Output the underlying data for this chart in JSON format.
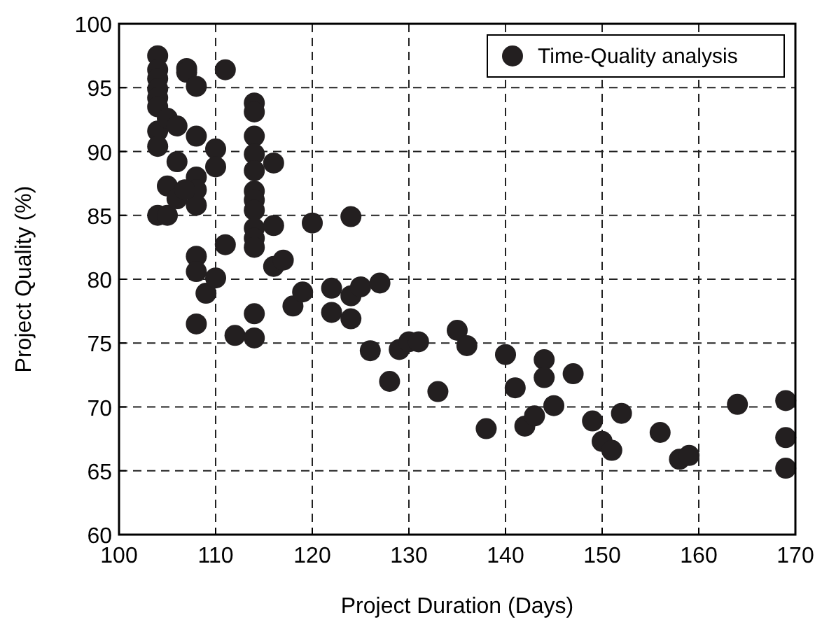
{
  "chart_data": {
    "type": "scatter",
    "xlabel": "Project Duration (Days)",
    "ylabel": "Project Quality (%)",
    "xlim": [
      100,
      170
    ],
    "xticks": [
      100,
      110,
      120,
      130,
      140,
      150,
      160,
      170
    ],
    "ylim": [
      60,
      100
    ],
    "yticks": [
      60,
      65,
      70,
      75,
      80,
      85,
      90,
      95,
      100
    ],
    "grid": true,
    "legend": "top right",
    "marker": "circle",
    "series": [
      {
        "name": "Time-Quality analysis",
        "color": "#231f20",
        "x": [
          104,
          104,
          104,
          104,
          104,
          104,
          104,
          104,
          104,
          105,
          105,
          105,
          106,
          106,
          106,
          107,
          107,
          108,
          108,
          108,
          108,
          108,
          108,
          108,
          108,
          106.8,
          109,
          110,
          110,
          110,
          111,
          111,
          112,
          114,
          114,
          114,
          114,
          114,
          114,
          114,
          114,
          114,
          114,
          114,
          114,
          114,
          116,
          116,
          116,
          117,
          118,
          119,
          120,
          122,
          122,
          124,
          124,
          124,
          125,
          126,
          127,
          129,
          130,
          131,
          128,
          133,
          135,
          136,
          138,
          140,
          141,
          142,
          143,
          144,
          144,
          145,
          147,
          149,
          150,
          151,
          152,
          156,
          158,
          159,
          164,
          169,
          169,
          169
        ],
        "values": [
          97.5,
          96.4,
          95.7,
          94.9,
          94.2,
          93.5,
          91.6,
          90.4,
          85,
          92.6,
          85,
          87.3,
          92,
          89.2,
          86.3,
          96.5,
          96.2,
          95.1,
          91.2,
          88,
          87,
          85.8,
          81.8,
          80.6,
          76.5,
          87,
          78.9,
          90.2,
          88.8,
          80.1,
          96.4,
          82.7,
          75.6,
          93.8,
          93.1,
          91.2,
          89.8,
          88.5,
          86.9,
          86.2,
          85.4,
          84,
          83.2,
          82.5,
          77.3,
          75.4,
          89.1,
          84.2,
          81,
          81.5,
          77.9,
          79,
          84.4,
          79.3,
          77.4,
          84.9,
          78.7,
          76.9,
          79.4,
          74.4,
          79.7,
          74.5,
          75.1,
          75.1,
          72,
          71.2,
          76,
          74.8,
          68.3,
          74.1,
          71.5,
          68.5,
          69.3,
          73.7,
          72.3,
          70.1,
          72.6,
          68.9,
          67.3,
          66.6,
          69.5,
          68,
          65.9,
          66.2,
          70.2,
          70.5,
          67.6,
          65.2
        ]
      }
    ]
  }
}
